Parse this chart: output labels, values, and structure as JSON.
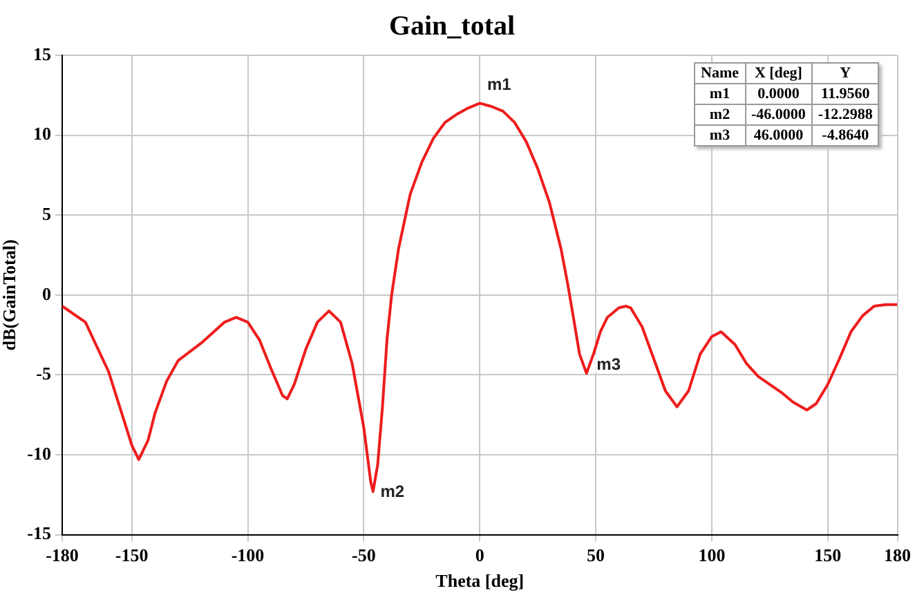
{
  "chart_data": {
    "type": "line",
    "title": "Gain_total",
    "xlabel": "Theta [deg]",
    "ylabel": "dB(GainTotal)",
    "xlim": [
      -180,
      180
    ],
    "xticks": [
      -180,
      -150,
      -100,
      -50,
      0,
      50,
      100,
      150,
      180
    ],
    "ylim": [
      -15,
      15
    ],
    "yticks": [
      -15,
      -10,
      -5,
      0,
      5,
      10,
      15
    ],
    "grid": true,
    "marker": "none",
    "line_style": "solid",
    "series": [
      {
        "color": "#ee1c1c",
        "x": [
          -180,
          -170,
          -160,
          -155,
          -150,
          -147,
          -143,
          -140,
          -135,
          -130,
          -120,
          -110,
          -105,
          -100,
          -95,
          -90,
          -85,
          -83,
          -80,
          -75,
          -70,
          -65,
          -60,
          -55,
          -50,
          -47,
          -46,
          -44,
          -42,
          -40,
          -38,
          -35,
          -30,
          -25,
          -20,
          -15,
          -10,
          -5,
          0,
          5,
          10,
          15,
          20,
          25,
          30,
          35,
          38,
          40,
          43,
          46,
          49,
          52,
          55,
          60,
          63,
          65,
          70,
          75,
          80,
          85,
          90,
          95,
          100,
          104,
          110,
          115,
          120,
          130,
          135,
          141,
          145,
          150,
          155,
          160,
          165,
          170,
          175,
          180
        ],
        "values": [
          -0.7,
          -1.7,
          -4.8,
          -7.1,
          -9.4,
          -10.3,
          -9.1,
          -7.4,
          -5.4,
          -4.1,
          -3.0,
          -1.7,
          -1.4,
          -1.7,
          -2.8,
          -4.6,
          -6.3,
          -6.5,
          -5.6,
          -3.4,
          -1.7,
          -1.0,
          -1.7,
          -4.3,
          -8.3,
          -11.7,
          -12.3,
          -10.6,
          -7.1,
          -2.8,
          0,
          2.9,
          6.3,
          8.3,
          9.8,
          10.8,
          11.3,
          11.7,
          12.0,
          11.8,
          11.5,
          10.8,
          9.6,
          7.9,
          5.8,
          2.9,
          0.6,
          -1.1,
          -3.7,
          -4.9,
          -3.7,
          -2.3,
          -1.4,
          -0.8,
          -0.7,
          -0.8,
          -2.0,
          -4.0,
          -6.0,
          -7.0,
          -6.0,
          -3.7,
          -2.6,
          -2.3,
          -3.1,
          -4.3,
          -5.1,
          -6.1,
          -6.7,
          -7.2,
          -6.8,
          -5.6,
          -4.0,
          -2.3,
          -1.3,
          -0.7,
          -0.6,
          -0.6
        ]
      }
    ],
    "annotations": [
      {
        "text": "m1",
        "x": 0,
        "y": 11.956
      },
      {
        "text": "m2",
        "x": -46,
        "y": -12.2988
      },
      {
        "text": "m3",
        "x": 46,
        "y": -4.864
      },
      "Name",
      "X [deg]",
      "Y",
      "m1",
      "0.0000",
      "11.9560",
      "m2",
      "-46.0000",
      "-12.2988",
      "m3",
      "46.0000",
      "-4.8640"
    ]
  }
}
